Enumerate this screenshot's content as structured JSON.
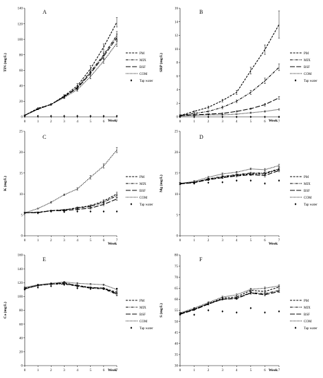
{
  "figure": {
    "legend_entries": [
      "PM",
      "MIX",
      "BSF",
      "COM",
      "Tap water"
    ],
    "series_colors": {
      "PM": "#000000",
      "MIX": "#000000",
      "BSF": "#000000",
      "COM": "#000000",
      "Tap water": "#000000"
    }
  },
  "chart_data": [
    {
      "type": "line",
      "panel": "A",
      "title": "",
      "xlabel": "Week",
      "ylabel": "TIN (mg/L)",
      "x": [
        0,
        1,
        2,
        3,
        4,
        5,
        6,
        7
      ],
      "xlim": [
        0,
        7
      ],
      "ylim": [
        0,
        140
      ],
      "yticks": [
        0,
        20,
        40,
        60,
        80,
        100,
        120,
        140
      ],
      "grid": false,
      "legend": "right",
      "series": [
        {
          "name": "PM",
          "style": "dashed",
          "values": [
            2,
            11,
            16,
            27,
            40,
            62,
            90,
            122
          ],
          "err": [
            0.5,
            0.8,
            1,
            1.5,
            3,
            4,
            4,
            6
          ]
        },
        {
          "name": "MIX",
          "style": "dashdot",
          "values": [
            2,
            10,
            16,
            26,
            38,
            58,
            80,
            105
          ],
          "err": [
            0.5,
            0.8,
            1,
            1.5,
            2,
            3,
            4,
            5
          ]
        },
        {
          "name": "BSF",
          "style": "longdash",
          "values": [
            2,
            10,
            16,
            26,
            37,
            56,
            78,
            102
          ],
          "err": [
            0.5,
            0.8,
            1,
            1.5,
            2,
            3,
            4,
            5
          ]
        },
        {
          "name": "COM",
          "style": "dotted",
          "values": [
            2,
            10,
            16,
            25,
            35,
            52,
            72,
            95
          ],
          "err": [
            0.5,
            0.8,
            1,
            1.5,
            2,
            3,
            3,
            4
          ]
        },
        {
          "name": "Tap water",
          "style": "markers",
          "values": [
            1,
            1,
            1,
            1,
            1,
            1,
            1,
            1
          ],
          "err": []
        }
      ]
    },
    {
      "type": "line",
      "panel": "B",
      "title": "",
      "xlabel": "Week",
      "ylabel": "SRP (mg/L)",
      "x": [
        0,
        1,
        2,
        3,
        4,
        5,
        6,
        7
      ],
      "xlim": [
        0,
        7
      ],
      "ylim": [
        0,
        16
      ],
      "yticks": [
        0,
        2,
        4,
        6,
        8,
        10,
        12,
        14,
        16
      ],
      "grid": false,
      "legend": "right",
      "series": [
        {
          "name": "PM",
          "style": "dashed",
          "values": [
            0.2,
            0.8,
            1.4,
            2.4,
            3.6,
            6.8,
            9.9,
            13.6
          ],
          "err": [
            0.1,
            0.1,
            0.2,
            0.2,
            0.3,
            0.5,
            0.7,
            2.0
          ]
        },
        {
          "name": "MIX",
          "style": "dashdot",
          "values": [
            0.2,
            0.5,
            0.8,
            1.4,
            2.3,
            3.6,
            5.3,
            7.3
          ],
          "err": [
            0.1,
            0.1,
            0.1,
            0.2,
            0.2,
            0.3,
            0.4,
            0.5
          ]
        },
        {
          "name": "BSF",
          "style": "longdash",
          "values": [
            0.2,
            0.3,
            0.4,
            0.5,
            0.8,
            1.2,
            1.8,
            2.8
          ],
          "err": [
            0.05,
            0.05,
            0.05,
            0.1,
            0.1,
            0.1,
            0.2,
            0.2
          ]
        },
        {
          "name": "COM",
          "style": "dotted",
          "values": [
            0.1,
            0.2,
            0.3,
            0.3,
            0.4,
            0.6,
            0.8,
            1.1
          ],
          "err": [
            0.05,
            0.05,
            0.05,
            0.05,
            0.05,
            0.1,
            0.1,
            0.1
          ]
        },
        {
          "name": "Tap water",
          "style": "markers",
          "values": [
            0,
            0,
            0,
            0,
            0,
            0,
            0,
            0
          ],
          "err": []
        }
      ]
    },
    {
      "type": "line",
      "panel": "C",
      "title": "",
      "xlabel": "Week",
      "ylabel": "K (mg/L)",
      "x": [
        0,
        1,
        2,
        3,
        4,
        5,
        6,
        7
      ],
      "xlim": [
        0,
        7
      ],
      "ylim": [
        0,
        25
      ],
      "yticks": [
        0,
        5,
        10,
        15,
        20,
        25
      ],
      "grid": false,
      "legend": "right",
      "series": [
        {
          "name": "PM",
          "style": "dashed",
          "values": [
            5.5,
            5.6,
            6.0,
            6.2,
            6.7,
            7.2,
            8.3,
            10.0
          ],
          "err": [
            0.1,
            0.1,
            0.1,
            0.1,
            0.2,
            0.2,
            0.3,
            0.4
          ]
        },
        {
          "name": "MIX",
          "style": "dashdot",
          "values": [
            5.5,
            5.6,
            6.0,
            6.2,
            6.6,
            7.0,
            8.0,
            9.6
          ],
          "err": [
            0.1,
            0.1,
            0.1,
            0.1,
            0.2,
            0.2,
            0.3,
            0.4
          ]
        },
        {
          "name": "BSF",
          "style": "longdash",
          "values": [
            5.5,
            5.5,
            6.0,
            6.0,
            6.3,
            6.6,
            7.5,
            8.8
          ],
          "err": [
            0.1,
            0.1,
            0.1,
            0.1,
            0.2,
            0.2,
            0.3,
            0.3
          ]
        },
        {
          "name": "COM",
          "style": "dotted",
          "values": [
            5.5,
            6.5,
            8.0,
            9.8,
            11.2,
            14.0,
            16.7,
            20.5
          ],
          "err": [
            0.1,
            0.1,
            0.2,
            0.2,
            0.3,
            0.4,
            0.5,
            0.6
          ]
        },
        {
          "name": "Tap water",
          "style": "markers",
          "values": [
            5.4,
            5.4,
            5.8,
            5.7,
            5.8,
            5.8,
            5.8,
            5.8
          ],
          "err": []
        }
      ]
    },
    {
      "type": "line",
      "panel": "D",
      "title": "",
      "xlabel": "Week",
      "ylabel": "Mg (mg/L)",
      "x": [
        0,
        1,
        2,
        3,
        4,
        5,
        6,
        7
      ],
      "xlim": [
        0,
        7
      ],
      "ylim": [
        0,
        25
      ],
      "yticks": [
        0,
        5,
        10,
        15,
        20,
        25
      ],
      "grid": false,
      "legend": "right",
      "series": [
        {
          "name": "PM",
          "style": "dashed",
          "values": [
            12.5,
            12.8,
            13.5,
            14.0,
            14.5,
            14.8,
            14.8,
            15.9
          ],
          "err": [
            0.2,
            0.2,
            0.2,
            0.2,
            0.2,
            0.2,
            0.3,
            0.3
          ]
        },
        {
          "name": "MIX",
          "style": "dashdot",
          "values": [
            12.5,
            12.8,
            13.6,
            14.2,
            14.6,
            15.0,
            15.0,
            16.0
          ],
          "err": [
            0.2,
            0.2,
            0.2,
            0.2,
            0.2,
            0.2,
            0.3,
            0.3
          ]
        },
        {
          "name": "BSF",
          "style": "longdash",
          "values": [
            12.4,
            12.7,
            13.4,
            13.9,
            14.3,
            14.6,
            14.4,
            15.6
          ],
          "err": [
            0.2,
            0.2,
            0.2,
            0.2,
            0.2,
            0.2,
            0.3,
            0.3
          ]
        },
        {
          "name": "COM",
          "style": "dotted",
          "values": [
            12.5,
            13.0,
            14.0,
            14.8,
            15.2,
            16.0,
            15.8,
            16.8
          ],
          "err": [
            0.2,
            0.2,
            0.2,
            0.2,
            0.2,
            0.2,
            0.3,
            0.3
          ]
        },
        {
          "name": "Tap water",
          "style": "markers",
          "values": [
            12.6,
            12.5,
            12.7,
            12.8,
            13.2,
            13.2,
            12.5,
            13.2
          ],
          "err": []
        }
      ]
    },
    {
      "type": "line",
      "panel": "E",
      "title": "",
      "xlabel": "Week",
      "ylabel": "Ca (mg/L)",
      "x": [
        0,
        1,
        2,
        3,
        4,
        5,
        6,
        7
      ],
      "xlim": [
        0,
        7
      ],
      "ylim": [
        0,
        160
      ],
      "yticks": [
        0,
        20,
        40,
        60,
        80,
        100,
        120,
        140,
        160
      ],
      "grid": false,
      "legend": "right",
      "series": [
        {
          "name": "PM",
          "style": "dashed",
          "values": [
            112,
            116,
            118,
            119,
            116,
            113,
            112,
            106
          ],
          "err": [
            1,
            1,
            1,
            1,
            1,
            1,
            1,
            2
          ]
        },
        {
          "name": "MIX",
          "style": "dashdot",
          "values": [
            111,
            116,
            118,
            118,
            115,
            112,
            111,
            103
          ],
          "err": [
            1,
            1,
            1,
            1,
            1,
            1,
            1,
            2
          ]
        },
        {
          "name": "BSF",
          "style": "longdash",
          "values": [
            111,
            116,
            118,
            120,
            115,
            113,
            112,
            104
          ],
          "err": [
            1,
            1,
            1,
            1,
            1,
            1,
            1,
            2
          ]
        },
        {
          "name": "COM",
          "style": "dotted",
          "values": [
            113,
            117,
            119,
            121,
            119,
            118,
            117,
            110
          ],
          "err": [
            1,
            1,
            1,
            1,
            1,
            1,
            1,
            2
          ]
        },
        {
          "name": "Tap water",
          "style": "markers",
          "values": [
            110,
            113,
            115,
            117,
            112,
            111,
            111,
            111
          ],
          "err": []
        }
      ]
    },
    {
      "type": "line",
      "panel": "F",
      "title": "",
      "xlabel": "Week",
      "ylabel": "S (mg/L)",
      "x": [
        0,
        1,
        2,
        3,
        4,
        5,
        6,
        7
      ],
      "xlim": [
        0,
        7
      ],
      "ylim": [
        30,
        80
      ],
      "yticks": [
        30,
        35,
        40,
        45,
        50,
        55,
        60,
        65,
        70,
        75,
        80
      ],
      "grid": false,
      "legend": "right",
      "series": [
        {
          "name": "PM",
          "style": "dashed",
          "values": [
            53.5,
            55.5,
            58.0,
            60.5,
            61.0,
            64.0,
            63.5,
            65.5
          ],
          "err": [
            0.3,
            0.3,
            0.4,
            0.4,
            0.4,
            0.5,
            0.5,
            0.5
          ]
        },
        {
          "name": "MIX",
          "style": "dashdot",
          "values": [
            53.5,
            55.5,
            58.0,
            60.0,
            60.5,
            63.0,
            62.5,
            64.0
          ],
          "err": [
            0.3,
            0.3,
            0.4,
            0.4,
            0.4,
            0.5,
            0.5,
            0.5
          ]
        },
        {
          "name": "BSF",
          "style": "longdash",
          "values": [
            53.2,
            55.2,
            57.8,
            60.0,
            60.3,
            62.8,
            62.0,
            63.5
          ],
          "err": [
            0.3,
            0.3,
            0.4,
            0.4,
            0.4,
            0.5,
            0.5,
            0.5
          ]
        },
        {
          "name": "COM",
          "style": "dotted",
          "values": [
            53.8,
            56.0,
            58.5,
            61.0,
            62.0,
            64.5,
            65.0,
            66.0
          ],
          "err": [
            0.3,
            0.3,
            0.4,
            0.4,
            0.4,
            0.5,
            0.5,
            0.5
          ]
        },
        {
          "name": "Tap water",
          "style": "markers",
          "values": [
            53.0,
            53.0,
            55.0,
            54.5,
            54.0,
            56.0,
            54.0,
            54.5
          ],
          "err": []
        }
      ]
    }
  ]
}
